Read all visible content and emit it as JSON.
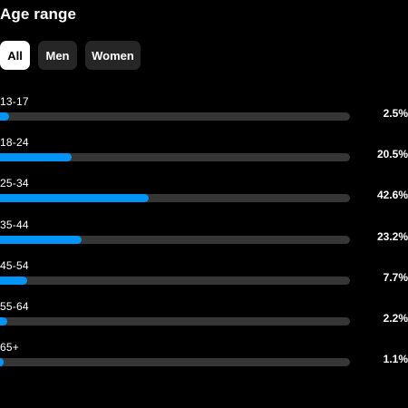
{
  "header": {
    "title": "Age range"
  },
  "filters": [
    {
      "label": "All",
      "selected": true
    },
    {
      "label": "Men",
      "selected": false
    },
    {
      "label": "Women",
      "selected": false
    }
  ],
  "colors": {
    "accent": "#0095f6",
    "track": "#363636",
    "background": "#000000",
    "chip_selected": "#ffffff",
    "chip_unselected": "#262626"
  },
  "age_ranges": [
    {
      "label": "13-17",
      "percent_text": "2.5%",
      "percent": 2.5
    },
    {
      "label": "18-24",
      "percent_text": "20.5%",
      "percent": 20.5
    },
    {
      "label": "25-34",
      "percent_text": "42.6%",
      "percent": 42.6
    },
    {
      "label": "35-44",
      "percent_text": "23.2%",
      "percent": 23.2
    },
    {
      "label": "45-54",
      "percent_text": "7.7%",
      "percent": 7.7
    },
    {
      "label": "55-64",
      "percent_text": "2.2%",
      "percent": 2.2
    },
    {
      "label": "65+",
      "percent_text": "1.1%",
      "percent": 1.1
    }
  ]
}
